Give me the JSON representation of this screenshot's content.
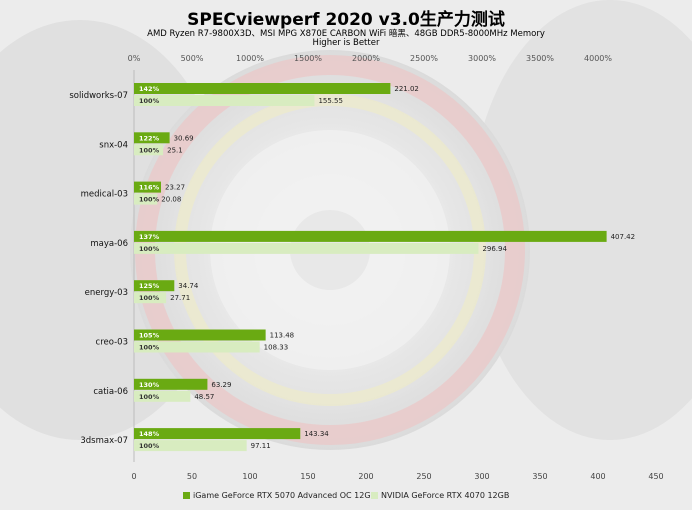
{
  "chart_data": {
    "type": "bar",
    "orientation": "horizontal",
    "title": "SPECviewperf 2020 v3.0生产力测试",
    "subtitle_lines": [
      "AMD Ryzen R7-9800X3D、MSI MPG X870E CARBON WiFi 暗黑、48GB DDR5-8000MHz Memory",
      "Higher is Better"
    ],
    "categories": [
      "solidworks-07",
      "snx-04",
      "medical-03",
      "maya-06",
      "energy-03",
      "creo-03",
      "catia-06",
      "3dsmax-07"
    ],
    "series": [
      {
        "name": "iGame GeForce RTX 5070 Advanced OC 12GB",
        "values": [
          221.02,
          30.69,
          23.27,
          407.42,
          34.74,
          113.48,
          63.29,
          143.34
        ],
        "labels": [
          "142%",
          "122%",
          "116%",
          "137%",
          "125%",
          "105%",
          "130%",
          "148%"
        ],
        "color": "#6aaa12"
      },
      {
        "name": "NVIDIA GeForce RTX 4070 12GB",
        "values": [
          155.55,
          25.1,
          20.08,
          296.94,
          27.71,
          108.33,
          48.57,
          97.11
        ],
        "labels": [
          "100%",
          "100%",
          "100%",
          "100%",
          "100%",
          "100%",
          "100%",
          "100%"
        ],
        "color": "#d8ecc0"
      }
    ],
    "x_axis_bottom": {
      "ticks": [
        0,
        50,
        100,
        150,
        200,
        250,
        300,
        350,
        400,
        450
      ],
      "range": [
        0,
        450
      ]
    },
    "x_axis_top": {
      "ticks": [
        "0%",
        "500%",
        "1000%",
        "1500%",
        "2000%",
        "2500%",
        "3000%",
        "3500%",
        "4000%"
      ],
      "range": [
        0,
        4500
      ]
    },
    "legend_position": "bottom",
    "grid": false
  }
}
